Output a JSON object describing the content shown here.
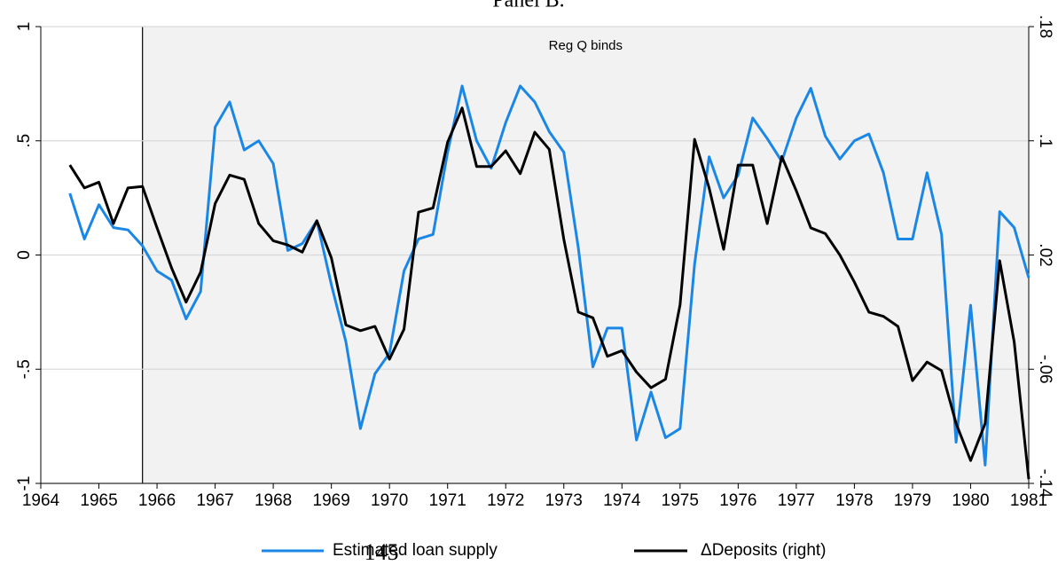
{
  "chart_data": {
    "type": "line",
    "title": "Panel B.",
    "annotation": "Reg Q binds",
    "shade_from": 1965.75,
    "page_number": "145",
    "x": [
      1964.5,
      1964.75,
      1965,
      1965.25,
      1965.5,
      1965.75,
      1966,
      1966.25,
      1966.5,
      1966.75,
      1967,
      1967.25,
      1967.5,
      1967.75,
      1968,
      1968.25,
      1968.5,
      1968.75,
      1969,
      1969.25,
      1969.5,
      1969.75,
      1970,
      1970.25,
      1970.5,
      1970.75,
      1971,
      1971.25,
      1971.5,
      1971.75,
      1972,
      1972.25,
      1972.5,
      1972.75,
      1973,
      1973.25,
      1973.5,
      1973.75,
      1974,
      1974.25,
      1974.5,
      1974.75,
      1975,
      1975.25,
      1975.5,
      1975.75,
      1976,
      1976.25,
      1976.5,
      1976.75,
      1977,
      1977.25,
      1977.5,
      1977.75,
      1978,
      1978.25,
      1978.5,
      1978.75,
      1979,
      1979.25,
      1979.5,
      1979.75,
      1980,
      1980.25,
      1980.5,
      1980.75,
      1981
    ],
    "series": [
      {
        "name": "Estimated loan supply",
        "color": "#1a87e6",
        "values": [
          0.27,
          0.07,
          0.22,
          0.12,
          0.11,
          0.04,
          -0.07,
          -0.11,
          -0.28,
          -0.16,
          0.56,
          0.67,
          0.46,
          0.5,
          0.4,
          0.02,
          0.05,
          0.15,
          -0.13,
          -0.38,
          -0.76,
          -0.52,
          -0.43,
          -0.07,
          0.07,
          0.09,
          0.45,
          0.74,
          0.5,
          0.38,
          0.58,
          0.74,
          0.67,
          0.54,
          0.45,
          0.03,
          -0.49,
          -0.32,
          -0.32,
          -0.81,
          -0.6,
          -0.8,
          -0.76,
          -0.04,
          0.43,
          0.25,
          0.35,
          0.6,
          0.51,
          0.41,
          0.6,
          0.73,
          0.52,
          0.42,
          0.5,
          0.53,
          0.36,
          0.07,
          0.07,
          0.36,
          0.09,
          -0.82,
          -0.22,
          -0.92,
          0.19,
          0.12,
          -0.1
        ]
      },
      {
        "name": "ΔDeposits (right)",
        "color": "#000000",
        "axis": "y2",
        "values": [
          0.083,
          0.067,
          0.071,
          0.042,
          0.067,
          0.068,
          0.039,
          0.011,
          -0.013,
          0.008,
          0.056,
          0.076,
          0.073,
          0.042,
          0.03,
          0.027,
          0.022,
          0.044,
          0.018,
          -0.029,
          -0.033,
          -0.03,
          -0.053,
          -0.032,
          0.05,
          0.053,
          0.099,
          0.123,
          0.082,
          0.082,
          0.093,
          0.077,
          0.106,
          0.094,
          0.031,
          -0.02,
          -0.024,
          -0.051,
          -0.047,
          -0.062,
          -0.073,
          -0.067,
          -0.015,
          0.101,
          0.067,
          0.024,
          0.083,
          0.083,
          0.042,
          0.089,
          0.065,
          0.039,
          0.035,
          0.02,
          0.001,
          -0.02,
          -0.023,
          -0.03,
          -0.068,
          -0.055,
          -0.061,
          -0.098,
          -0.124,
          -0.098,
          0.016,
          -0.041,
          -0.137
        ]
      }
    ],
    "xlim": [
      1964,
      1981
    ],
    "xticks": [
      1964,
      1965,
      1966,
      1967,
      1968,
      1969,
      1970,
      1971,
      1972,
      1973,
      1974,
      1975,
      1976,
      1977,
      1978,
      1979,
      1980,
      1981
    ],
    "ylim": [
      -1,
      1
    ],
    "yticks": [
      -1,
      {
        "value": -0.5,
        "label": "-.5"
      },
      0,
      {
        "value": 0.5,
        "label": ".5"
      },
      1
    ],
    "y2lim": [
      -0.14,
      0.18
    ],
    "y2ticks": [
      {
        "value": -0.14,
        "label": "-.14"
      },
      {
        "value": -0.06,
        "label": "-.06"
      },
      {
        "value": 0.02,
        "label": ".02"
      },
      {
        "value": 0.1,
        "label": ".1"
      },
      {
        "value": 0.18,
        "label": ".18"
      }
    ],
    "grid": true
  }
}
